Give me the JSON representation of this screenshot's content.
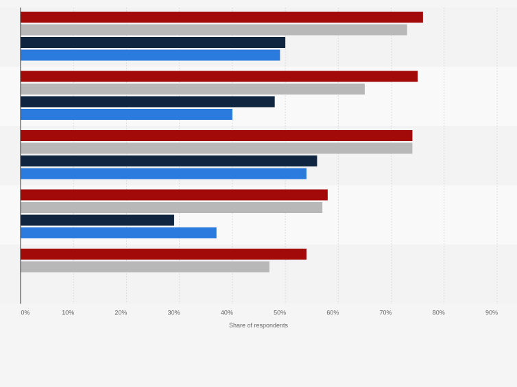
{
  "chart_data": {
    "type": "bar",
    "orientation": "horizontal",
    "categories": [
      "",
      "",
      "",
      "",
      ""
    ],
    "series": [
      {
        "color": "#a20a0a",
        "values": [
          76,
          75,
          74,
          58,
          54
        ]
      },
      {
        "color": "#b8b8b8",
        "values": [
          73,
          65,
          74,
          57,
          47
        ]
      },
      {
        "color": "#0f2540",
        "values": [
          50,
          48,
          56,
          29,
          null
        ]
      },
      {
        "color": "#2b7bde",
        "values": [
          49,
          40,
          54,
          37,
          null
        ]
      }
    ],
    "xlabel": "Share of respondents",
    "xlim": [
      0,
      90
    ],
    "xticks": [
      "0%",
      "10%",
      "20%",
      "30%",
      "40%",
      "50%",
      "60%",
      "70%",
      "80%",
      "90%"
    ],
    "grid": true,
    "alternating_bands": true
  }
}
